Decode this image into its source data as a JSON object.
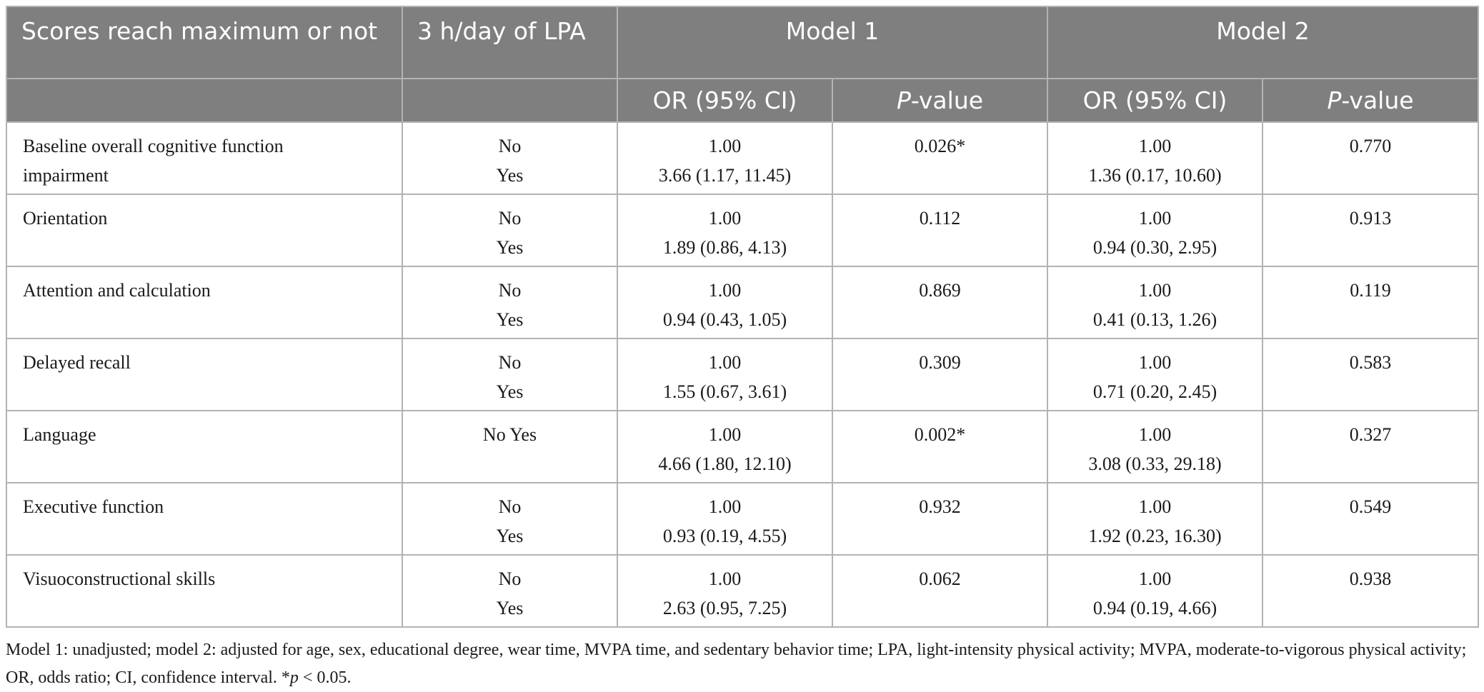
{
  "header": {
    "col1": "Scores reach maximum or not",
    "col2": "3 h/day of LPA",
    "model1": "Model 1",
    "model2": "Model 2",
    "or_label": "OR (95% CI)",
    "p_label_italic": "P",
    "p_label_rest": "-value"
  },
  "rows": [
    {
      "label": "Baseline overall cognitive function impairment",
      "lpa": [
        "No",
        "Yes"
      ],
      "m1_or": [
        "1.00",
        "3.66 (1.17, 11.45)"
      ],
      "m1_p": "0.026*",
      "m2_or": [
        "1.00",
        "1.36 (0.17, 10.60)"
      ],
      "m2_p": "0.770"
    },
    {
      "label": "Orientation",
      "lpa": [
        "No",
        "Yes"
      ],
      "m1_or": [
        "1.00",
        "1.89 (0.86, 4.13)"
      ],
      "m1_p": "0.112",
      "m2_or": [
        "1.00",
        "0.94 (0.30, 2.95)"
      ],
      "m2_p": "0.913"
    },
    {
      "label": "Attention and calculation",
      "lpa": [
        "No",
        "Yes"
      ],
      "m1_or": [
        "1.00",
        "0.94 (0.43, 1.05)"
      ],
      "m1_p": "0.869",
      "m2_or": [
        "1.00",
        "0.41 (0.13, 1.26)"
      ],
      "m2_p": "0.119"
    },
    {
      "label": "Delayed recall",
      "lpa": [
        "No",
        "Yes"
      ],
      "m1_or": [
        "1.00",
        "1.55 (0.67, 3.61)"
      ],
      "m1_p": "0.309",
      "m2_or": [
        "1.00",
        "0.71 (0.20, 2.45)"
      ],
      "m2_p": "0.583"
    },
    {
      "label": "Language",
      "lpa": [
        "No Yes",
        ""
      ],
      "m1_or": [
        "1.00",
        "4.66 (1.80, 12.10)"
      ],
      "m1_p": "0.002*",
      "m2_or": [
        "1.00",
        "3.08 (0.33, 29.18)"
      ],
      "m2_p": "0.327"
    },
    {
      "label": "Executive function",
      "lpa": [
        "No",
        "Yes"
      ],
      "m1_or": [
        "1.00",
        "0.93 (0.19, 4.55)"
      ],
      "m1_p": "0.932",
      "m2_or": [
        "1.00",
        "1.92 (0.23, 16.30)"
      ],
      "m2_p": "0.549"
    },
    {
      "label": "Visuoconstructional skills",
      "lpa": [
        "No",
        "Yes"
      ],
      "m1_or": [
        "1.00",
        "2.63 (0.95, 7.25)"
      ],
      "m1_p": "0.062",
      "m2_or": [
        "1.00",
        "0.94 (0.19, 4.66)"
      ],
      "m2_p": "0.938"
    }
  ],
  "footnote": {
    "main": "Model 1: unadjusted; model 2: adjusted for age, sex, educational degree, wear time, MVPA time, and sedentary behavior time; LPA, light-intensity physical activity; MVPA, moderate-to-vigorous physical activity; OR, odds ratio; CI, confidence interval. ",
    "star": "*",
    "p_italic": "p",
    "threshold": " < 0.05."
  }
}
